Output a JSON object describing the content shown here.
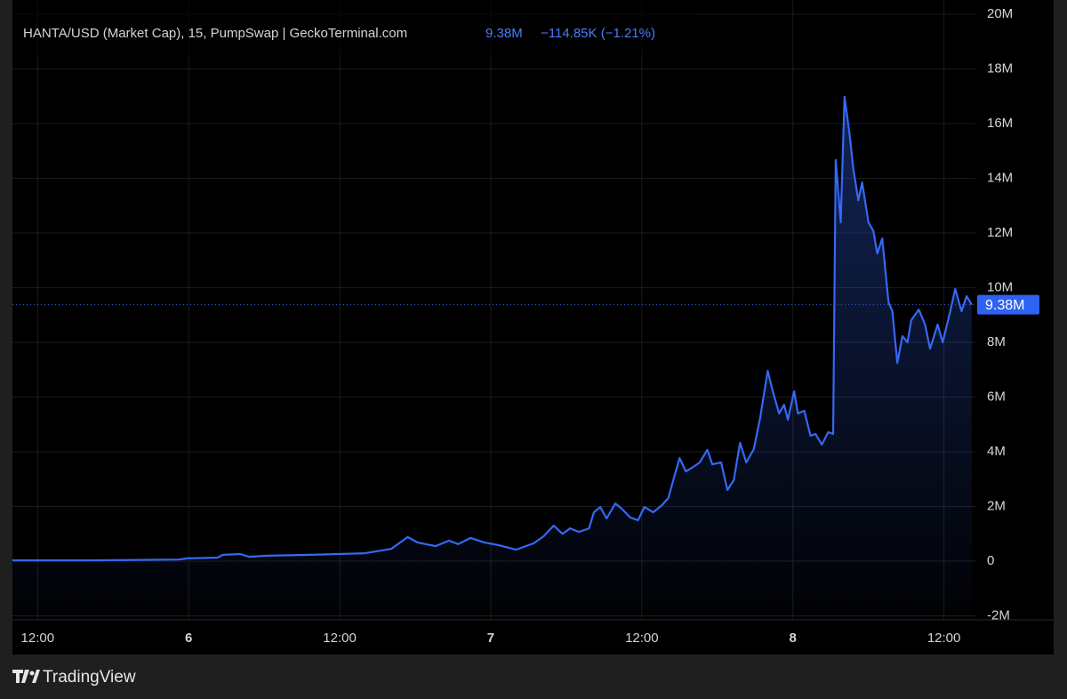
{
  "chart_data": {
    "type": "line",
    "title": "HANTA/USD (Market Cap), 15, PumpSwap | GeckoTerminal.com",
    "last_price": {
      "value": 9380000,
      "label": "9.38M"
    },
    "change": "−114.85K (−1.21%)",
    "brand": "TradingView",
    "grid": true,
    "xlim": [
      10,
      86.5
    ],
    "xticks": [
      {
        "value": 12,
        "label": "12:00"
      },
      {
        "value": 24,
        "label": "6"
      },
      {
        "value": 36,
        "label": "12:00"
      },
      {
        "value": 48,
        "label": "7"
      },
      {
        "value": 60,
        "label": "12:00"
      },
      {
        "value": 72,
        "label": "8"
      },
      {
        "value": 84,
        "label": "12:00"
      }
    ],
    "ylim": [
      -2000000,
      20000000
    ],
    "yticks": [
      {
        "value": -2000000,
        "label": "-2M"
      },
      0,
      {
        "value": 2000000,
        "label": "2M"
      },
      {
        "value": 4000000,
        "label": "4M"
      },
      {
        "value": 6000000,
        "label": "6M"
      },
      {
        "value": 8000000,
        "label": "8M"
      },
      {
        "value": 10000000,
        "label": "10M"
      },
      {
        "value": 12000000,
        "label": "12M"
      },
      {
        "value": 14000000,
        "label": "14M"
      },
      {
        "value": 16000000,
        "label": "16M"
      },
      {
        "value": 18000000,
        "label": "18M"
      },
      {
        "value": 20000000,
        "label": "20M"
      }
    ],
    "series": [
      {
        "name": "HANTA/USD",
        "color": "#3568f5",
        "x": [
          10,
          16.1,
          23.2,
          23.9,
          26.3,
          26.7,
          28.1,
          28.8,
          30.2,
          33.7,
          35.9,
          38,
          40.1,
          41.4,
          42.2,
          43.6,
          44.7,
          45.4,
          46.4,
          47.5,
          48.6,
          50,
          51.4,
          52.2,
          53,
          53.7,
          54.3,
          55,
          55.8,
          56.2,
          56.7,
          57.2,
          57.9,
          58.4,
          59.1,
          59.7,
          60.2,
          60.9,
          61.6,
          62.1,
          62.5,
          63,
          63.5,
          64.1,
          64.6,
          65.2,
          65.6,
          66.3,
          66.8,
          67.3,
          67.8,
          68.3,
          68.9,
          69.4,
          70,
          70.4,
          70.9,
          71.3,
          71.6,
          72.1,
          72.4,
          72.9,
          73.4,
          73.8,
          74.3,
          74.8,
          75.2,
          75.4,
          75.8,
          76.1,
          76.5,
          76.8,
          77.2,
          77.5,
          78,
          78.4,
          78.7,
          79.1,
          79.6,
          79.9,
          80.3,
          80.7,
          81.1,
          81.4,
          82,
          82.5,
          82.9,
          83.5,
          83.9,
          84.5,
          84.9,
          85.4,
          85.8,
          86.2
        ],
        "values": [
          30000,
          30000,
          60000,
          100000,
          130000,
          230000,
          260000,
          160000,
          200000,
          230000,
          260000,
          290000,
          450000,
          880000,
          680000,
          550000,
          750000,
          620000,
          850000,
          680000,
          590000,
          420000,
          650000,
          910000,
          1300000,
          1000000,
          1200000,
          1070000,
          1200000,
          1790000,
          1980000,
          1560000,
          2110000,
          1920000,
          1590000,
          1500000,
          1980000,
          1790000,
          2050000,
          2310000,
          2960000,
          3770000,
          3280000,
          3450000,
          3610000,
          4070000,
          3540000,
          3610000,
          2600000,
          2960000,
          4330000,
          3610000,
          4100000,
          5240000,
          6960000,
          6210000,
          5400000,
          5720000,
          5170000,
          6210000,
          5400000,
          5500000,
          4590000,
          4650000,
          4260000,
          4720000,
          4650000,
          14670000,
          12390000,
          16980000,
          15640000,
          14340000,
          13200000,
          13850000,
          12390000,
          12070000,
          11250000,
          11800000,
          9460000,
          9140000,
          7250000,
          8230000,
          8000000,
          8810000,
          9200000,
          8650000,
          7770000,
          8650000,
          8000000,
          9140000,
          9950000,
          9140000,
          9690000,
          9380000
        ]
      }
    ]
  }
}
